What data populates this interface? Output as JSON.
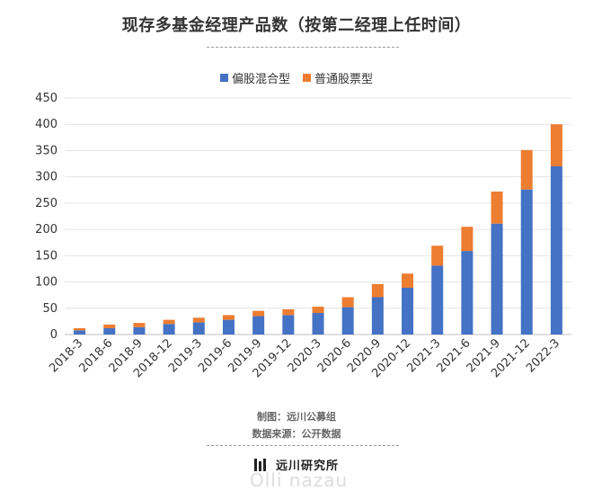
{
  "title": "现存多基金经理产品数（按第二经理上任时间）",
  "legend": [
    {
      "name": "偏股混合型",
      "color": "#4472C4"
    },
    {
      "name": "普通股票型",
      "color": "#ED7D31"
    }
  ],
  "chart_data": {
    "type": "bar",
    "stacked": true,
    "categories": [
      "2018-3",
      "2018-6",
      "2018-9",
      "2018-12",
      "2019-3",
      "2019-6",
      "2019-9",
      "2019-12",
      "2020-3",
      "2020-6",
      "2020-9",
      "2020-12",
      "2021-3",
      "2021-6",
      "2021-9",
      "2021-12",
      "2022-3"
    ],
    "series": [
      {
        "name": "偏股混合型",
        "color": "#4472C4",
        "values": [
          8,
          12,
          14,
          20,
          23,
          28,
          35,
          37,
          41,
          52,
          71,
          89,
          131,
          159,
          211,
          276,
          320
        ]
      },
      {
        "name": "普通股票型",
        "color": "#ED7D31",
        "values": [
          4,
          7,
          8,
          8,
          9,
          9,
          10,
          11,
          12,
          19,
          25,
          27,
          38,
          46,
          61,
          75,
          80
        ]
      }
    ],
    "ylim": [
      0,
      450
    ],
    "yticks": [
      0,
      50,
      100,
      150,
      200,
      250,
      300,
      350,
      400,
      450
    ],
    "grid": true,
    "legend_position": "top"
  },
  "footer": {
    "credit": "制图：远川公募组",
    "source": "数据来源：公开数据"
  },
  "brand": {
    "name": "远川研究所",
    "watermark": "Olli nazau"
  }
}
